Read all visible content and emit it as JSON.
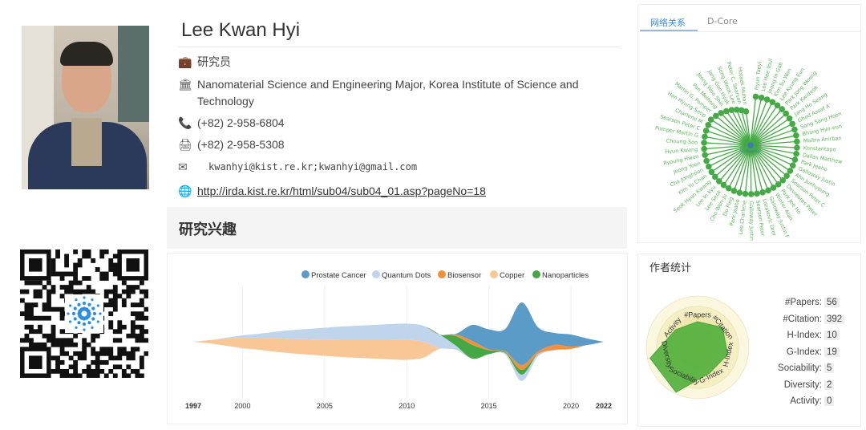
{
  "profile": {
    "name": "Lee Kwan Hyi",
    "title": "研究员",
    "affiliation": "Nanomaterial Science and Engineering Major, Korea Institute of Science and Technology",
    "phone": "(+82) 2-958-6804",
    "fax": "(+82) 2-958-5308",
    "email": "kwanhyi@kist.re.kr;kwanhyi@gmail.com",
    "homepage": "http://irda.kist.re.kr/html/sub04/sub04_01.asp?pageNo=18",
    "icons": [
      "briefcase-icon",
      "institution-icon",
      "phone-icon",
      "fax-icon",
      "envelope-icon",
      "globe-icon"
    ]
  },
  "research_interests": {
    "title": "研究兴趣"
  },
  "chart_data": {
    "type": "area",
    "subtype": "streamgraph",
    "x": [
      1997,
      1998,
      1999,
      2000,
      2001,
      2002,
      2003,
      2004,
      2005,
      2006,
      2007,
      2008,
      2009,
      2010,
      2011,
      2012,
      2013,
      2014,
      2015,
      2016,
      2017,
      2018,
      2019,
      2020,
      2021,
      2022
    ],
    "x_ticks": [
      "1997",
      "2000",
      "2005",
      "2010",
      "2015",
      "2020",
      "2022"
    ],
    "series": [
      {
        "name": "Prostate Cancer",
        "color": "#5b9bc8",
        "values": [
          0,
          0,
          0,
          0,
          0,
          0,
          0,
          0,
          0,
          0,
          0,
          0,
          0,
          0,
          0,
          0,
          1,
          20,
          25,
          28,
          78,
          30,
          15,
          15,
          8,
          0
        ]
      },
      {
        "name": "Quantum Dots",
        "color": "#c0d5ec",
        "values": [
          0,
          0,
          1,
          3,
          5,
          8,
          11,
          13,
          15,
          17,
          18,
          19,
          20,
          20,
          20,
          17,
          5,
          0,
          0,
          2,
          8,
          3,
          1,
          0,
          0,
          0
        ]
      },
      {
        "name": "Biosensor",
        "color": "#f5903a",
        "values": [
          0,
          0,
          0,
          0,
          0,
          0,
          0,
          0,
          0,
          0,
          0,
          0,
          0,
          0,
          0,
          0,
          2,
          5,
          1,
          1,
          6,
          3,
          6,
          3,
          0,
          0
        ]
      },
      {
        "name": "Copper",
        "color": "#f9c795",
        "values": [
          0,
          4,
          9,
          13,
          15,
          17,
          18,
          19,
          20,
          21,
          22,
          23,
          24,
          25,
          20,
          1,
          0,
          0,
          0,
          0,
          0,
          0,
          0,
          0,
          0,
          0
        ]
      },
      {
        "name": "Nanoparticles",
        "color": "#44a844",
        "values": [
          0,
          0,
          0,
          0,
          0,
          0,
          0,
          0,
          0,
          0,
          0,
          0,
          0,
          0,
          0,
          0,
          12,
          17,
          5,
          1,
          6,
          0,
          0,
          0,
          0,
          0
        ]
      }
    ],
    "legend": "top-right",
    "grid": true
  },
  "network": {
    "tabs": [
      "网络关系",
      "D-Core"
    ],
    "active_tab": 0,
    "center": "Lee Kwan Hyi",
    "node_color": "#44aa44",
    "center_color": "#3b78c9",
    "coauthors": [
      "Hyun Taeyi",
      "Lee Hee Youl",
      "Jeong In Gab",
      "Kim Su Won",
      "Lee Kyung Eun",
      "Park Jong Woong",
      "Park Kwideok",
      "Jang Ho Seong",
      "Ghod Assaf A",
      "Song Sang Hoon",
      "Bhang Hyo-eun",
      "Maitra Anirban",
      "Konstantopo",
      "Dallas Matthew",
      "Park Jeaho",
      "Galloway Justin",
      "Ahn Junhyoung",
      "Searson Peter C",
      "Devreotes Peter",
      "Park Jee Ho",
      "Winter Alan",
      "Galloway Justin F",
      "Lozakovic Dror",
      "Searson Peter",
      "Galloway Justin",
      "Lee Charlene",
      "Park Jeaho",
      "Du Ping",
      "Cho Won-Ju",
      "Lee Seok",
      "Lee In Kyu",
      "Seok Hyun Kwang",
      "Kim Yu Chan",
      "Cha Jonghoon",
      "Jeong Yoon",
      "Ryoung Hwan",
      "Hyun Kwang",
      "Choung-Soo",
      "Pomper Martin G",
      "Searson Peter C",
      "Charlene M",
      "Han Hyung-Seop",
      "Martin G. Pomper",
      "Pan Meihong",
      "Jeong Woo Shin",
      "Jang Gun Hyuk",
      "Song Wook Lee",
      "Peter C. Searson",
      "Hotaek Muhan"
    ]
  },
  "stats": {
    "title": "作者统计",
    "items": [
      {
        "label": "#Papers:",
        "value": "56",
        "axis": "#Papers",
        "score": 0.5
      },
      {
        "label": "#Citation:",
        "value": "392",
        "axis": "#Citation",
        "score": 0.62
      },
      {
        "label": "H-Index:",
        "value": "10",
        "axis": "H-Index",
        "score": 0.6
      },
      {
        "label": "G-Index:",
        "value": "19",
        "axis": "G-Index",
        "score": 0.55
      },
      {
        "label": "Sociability:",
        "value": "5",
        "axis": "Sociability",
        "score": 0.97
      },
      {
        "label": "Diversity:",
        "value": "2",
        "axis": "Diversity",
        "score": 0.95
      },
      {
        "label": "Activity:",
        "value": "0",
        "axis": "Activity",
        "score": 0.55
      }
    ]
  }
}
